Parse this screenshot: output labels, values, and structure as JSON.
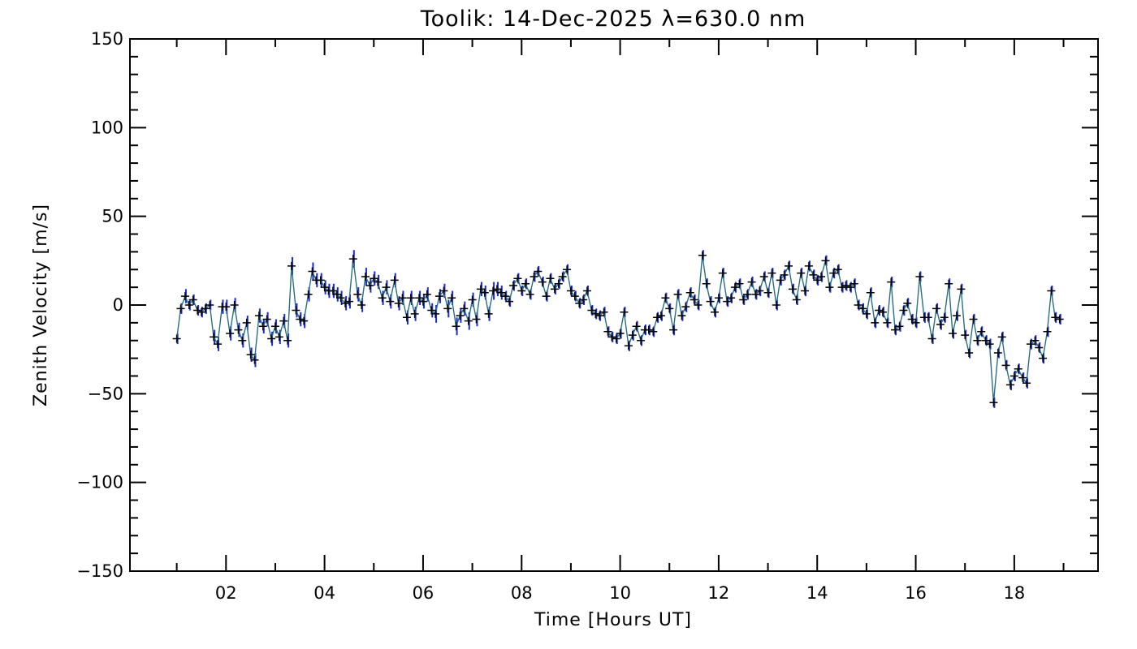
{
  "chart_data": {
    "type": "line",
    "title": "Toolik: 14-Dec-2025 λ=630.0 nm",
    "xlabel": "Time [Hours UT]",
    "ylabel": "Zenith Velocity [m/s]",
    "xlim": [
      0.05,
      19.7
    ],
    "ylim": [
      -150,
      150
    ],
    "x_ticks": [
      2,
      4,
      6,
      8,
      10,
      12,
      14,
      16,
      18
    ],
    "x_tick_labels": [
      "02",
      "04",
      "06",
      "08",
      "10",
      "12",
      "14",
      "16",
      "18"
    ],
    "y_ticks": [
      -150,
      -100,
      -50,
      0,
      50,
      100,
      150
    ],
    "y_tick_labels": [
      "−150",
      "−100",
      "−50",
      "0",
      "50",
      "100",
      "150"
    ],
    "grid": false,
    "colors": {
      "line": "#2a6f7f",
      "error_bar": "#1a2bd6",
      "marker": "#000000",
      "axes": "#000000"
    },
    "series": [
      {
        "x": [
          1.0,
          1.08,
          1.17,
          1.25,
          1.33,
          1.42,
          1.5,
          1.58,
          1.67,
          1.75,
          1.83,
          1.92,
          2.0,
          2.08,
          2.17,
          2.25,
          2.33,
          2.42,
          2.5,
          2.58,
          2.67,
          2.75,
          2.83,
          2.92,
          3.0,
          3.08,
          3.17,
          3.25,
          3.33,
          3.42,
          3.5,
          3.58,
          3.67,
          3.75,
          3.83,
          3.92,
          4.0,
          4.08,
          4.17,
          4.25,
          4.33,
          4.42,
          4.5,
          4.58,
          4.67,
          4.75,
          4.83,
          4.92,
          5.0,
          5.08,
          5.17,
          5.25,
          5.33,
          5.42,
          5.5,
          5.58,
          5.67,
          5.75,
          5.83,
          5.92,
          6.0,
          6.08,
          6.17,
          6.25,
          6.33,
          6.42,
          6.5,
          6.58,
          6.67,
          6.75,
          6.83,
          6.92,
          7.0,
          7.08,
          7.17,
          7.25,
          7.33,
          7.42,
          7.5,
          7.58,
          7.67,
          7.75,
          7.83,
          7.92,
          8.0,
          8.08,
          8.17,
          8.25,
          8.33,
          8.42,
          8.5,
          8.58,
          8.67,
          8.75,
          8.83,
          8.92,
          9.0,
          9.08,
          9.17,
          9.25,
          9.33,
          9.42,
          9.5,
          9.58,
          9.67,
          9.75,
          9.83,
          9.92,
          10.0,
          10.08,
          10.17,
          10.25,
          10.33,
          10.42,
          10.5,
          10.58,
          10.67,
          10.75,
          10.83,
          10.92,
          11.0,
          11.08,
          11.17,
          11.25,
          11.33,
          11.42,
          11.5,
          11.58,
          11.67,
          11.75,
          11.83,
          11.92,
          12.0,
          12.08,
          12.17,
          12.25,
          12.33,
          12.42,
          12.5,
          12.58,
          12.67,
          12.75,
          12.83,
          12.92,
          13.0,
          13.08,
          13.17,
          13.25,
          13.33,
          13.42,
          13.5,
          13.58,
          13.67,
          13.75,
          13.83,
          13.92,
          14.0,
          14.08,
          14.17,
          14.25,
          14.33,
          14.42,
          14.5,
          14.58,
          14.67,
          14.75,
          14.83,
          14.92,
          15.0,
          15.08,
          15.17,
          15.25,
          15.33,
          15.42,
          15.5,
          15.58,
          15.67,
          15.75,
          15.83,
          15.92,
          16.0,
          16.08,
          16.17,
          16.25,
          16.33,
          16.42,
          16.5,
          16.58,
          16.67,
          16.75,
          16.83,
          16.92,
          17.0,
          17.08,
          17.17,
          17.25,
          17.33,
          17.42,
          17.5,
          17.58,
          17.67,
          17.75,
          17.83,
          17.92,
          18.0,
          18.08,
          18.17,
          18.25,
          18.33,
          18.42,
          18.5,
          18.58,
          18.67,
          18.75,
          18.83,
          18.92
        ],
        "y": [
          -19,
          -2,
          5,
          0,
          3,
          -3,
          -4,
          -2,
          0,
          -18,
          -22,
          -1,
          -1,
          -16,
          0,
          -14,
          -20,
          -10,
          -28,
          -31,
          -6,
          -12,
          -8,
          -19,
          -12,
          -18,
          -9,
          -20,
          22,
          -3,
          -8,
          -9,
          6,
          19,
          14,
          14,
          10,
          8,
          8,
          6,
          4,
          1,
          2,
          26,
          6,
          0,
          16,
          11,
          15,
          13,
          4,
          10,
          2,
          14,
          1,
          4,
          -7,
          4,
          -5,
          4,
          2,
          6,
          -3,
          -5,
          5,
          8,
          -2,
          4,
          -12,
          -6,
          -2,
          -9,
          3,
          -8,
          9,
          7,
          -5,
          8,
          9,
          7,
          5,
          2,
          11,
          15,
          8,
          12,
          6,
          16,
          19,
          13,
          5,
          15,
          9,
          12,
          16,
          20,
          8,
          5,
          1,
          3,
          8,
          -3,
          -5,
          -6,
          -4,
          -15,
          -18,
          -19,
          -16,
          -4,
          -23,
          -17,
          -12,
          -20,
          -14,
          -14,
          -15,
          -7,
          -6,
          4,
          -2,
          -14,
          6,
          -6,
          -1,
          7,
          3,
          0,
          28,
          12,
          2,
          -4,
          4,
          18,
          2,
          4,
          10,
          12,
          3,
          6,
          13,
          6,
          8,
          16,
          7,
          18,
          0,
          14,
          17,
          22,
          9,
          3,
          18,
          8,
          22,
          17,
          14,
          16,
          25,
          10,
          18,
          20,
          10,
          11,
          10,
          12,
          0,
          -2,
          -5,
          7,
          -10,
          -3,
          -4,
          -10,
          13,
          -14,
          -12,
          -3,
          1,
          -8,
          -10,
          16,
          -7,
          -7,
          -19,
          -2,
          -11,
          -7,
          12,
          -16,
          -6,
          9,
          -17,
          -27,
          -8,
          -20,
          -15,
          -20,
          -22,
          -55,
          -27,
          -18,
          -34,
          -45,
          -40,
          -36,
          -41,
          -44,
          -22,
          -20,
          -24,
          -30,
          -15,
          8,
          -7,
          -8
        ],
        "errors": [
          3,
          3,
          4,
          3,
          3,
          3,
          3,
          3,
          3,
          4,
          4,
          4,
          4,
          4,
          4,
          4,
          4,
          4,
          4,
          4,
          4,
          4,
          4,
          4,
          4,
          4,
          4,
          4,
          5,
          4,
          4,
          4,
          4,
          5,
          4,
          4,
          4,
          4,
          4,
          4,
          4,
          4,
          4,
          5,
          4,
          4,
          5,
          4,
          4,
          4,
          4,
          4,
          4,
          4,
          4,
          4,
          4,
          4,
          4,
          4,
          4,
          4,
          4,
          5,
          4,
          4,
          5,
          4,
          5,
          4,
          4,
          5,
          4,
          4,
          4,
          4,
          4,
          5,
          4,
          4,
          3,
          3,
          3,
          3,
          3,
          3,
          3,
          3,
          3,
          3,
          3,
          3,
          3,
          3,
          3,
          3,
          3,
          3,
          3,
          3,
          3,
          3,
          3,
          3,
          3,
          3,
          3,
          3,
          3,
          3,
          3,
          3,
          3,
          3,
          3,
          3,
          3,
          3,
          3,
          3,
          3,
          3,
          3,
          3,
          3,
          3,
          3,
          3,
          3,
          3,
          3,
          3,
          3,
          3,
          3,
          3,
          3,
          3,
          3,
          3,
          3,
          3,
          3,
          3,
          3,
          3,
          3,
          3,
          3,
          3,
          3,
          3,
          3,
          3,
          3,
          3,
          3,
          3,
          3,
          3,
          3,
          3,
          3,
          3,
          3,
          3,
          3,
          3,
          3,
          3,
          3,
          3,
          3,
          3,
          3,
          3,
          3,
          3,
          3,
          3,
          3,
          3,
          3,
          3,
          3,
          3,
          3,
          3,
          3,
          3,
          3,
          3,
          3,
          3,
          3,
          3,
          3,
          3,
          3,
          3,
          3,
          3,
          3,
          3,
          3,
          3,
          3,
          3,
          3,
          3,
          3,
          3,
          3,
          3,
          3,
          3
        ]
      }
    ]
  }
}
